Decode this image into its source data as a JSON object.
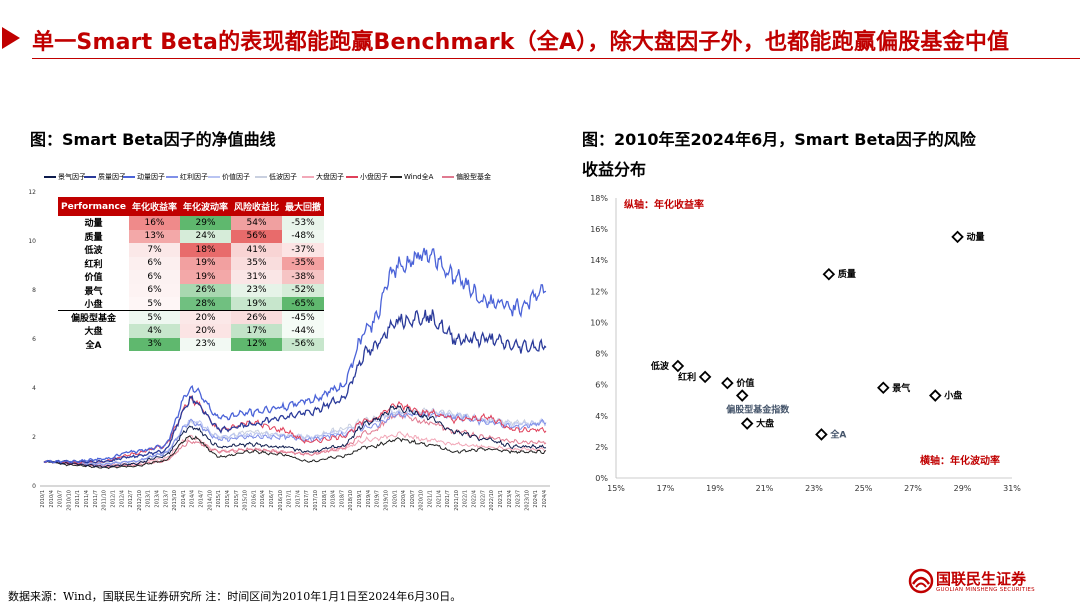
{
  "header": {
    "title": "单一Smart Beta的表现都能跑赢Benchmark（全A），除大盘因子外，也都能跑赢偏股基金中值"
  },
  "left_title": "图：Smart Beta因子的净值曲线",
  "right_title_line1": "图：2010年至2024年6月，Smart Beta因子的风险",
  "right_title_line2": "收益分布",
  "legend": [
    {
      "label": "景气因子",
      "color": "#0d1b4c"
    },
    {
      "label": "质量因子",
      "color": "#2a3a9a"
    },
    {
      "label": "动量因子",
      "color": "#4b63d8"
    },
    {
      "label": "红利因子",
      "color": "#7f8fe8"
    },
    {
      "label": "价值因子",
      "color": "#b9c4f2"
    },
    {
      "label": "低波因子",
      "color": "#c9d0e0"
    },
    {
      "label": "大盘因子",
      "color": "#f2a8b8"
    },
    {
      "label": "小盘因子",
      "color": "#e0405a"
    },
    {
      "label": "Wind全A",
      "color": "#222222"
    },
    {
      "label": "偏股型基金",
      "color": "#e07a90"
    }
  ],
  "table": {
    "headers": [
      "Performance",
      "年化收益率",
      "年化波动率",
      "风险收益比",
      "最大回撤"
    ],
    "rows": [
      {
        "name": "动量",
        "values": [
          "16%",
          "29%",
          "54%",
          "-53%"
        ],
        "colors": [
          "#ef8a8a",
          "#5fb86e",
          "#f0a0a0",
          "#e8f4ea"
        ]
      },
      {
        "name": "质量",
        "values": [
          "13%",
          "24%",
          "56%",
          "-48%"
        ],
        "colors": [
          "#f3a8a8",
          "#d6ecd9",
          "#e86b6b",
          "#eff7f0"
        ]
      },
      {
        "name": "低波",
        "values": [
          "7%",
          "18%",
          "41%",
          "-37%"
        ],
        "colors": [
          "#fbe8e8",
          "#e86b6b",
          "#f8d4d4",
          "#fce4e4"
        ]
      },
      {
        "name": "红利",
        "values": [
          "6%",
          "19%",
          "35%",
          "-35%"
        ],
        "colors": [
          "#fcefef",
          "#f2a0a0",
          "#f9dddd",
          "#f3a0a0"
        ]
      },
      {
        "name": "价值",
        "values": [
          "6%",
          "19%",
          "31%",
          "-38%"
        ],
        "colors": [
          "#fcf2f2",
          "#f3a8a8",
          "#fae6e6",
          "#f6c4c4"
        ]
      },
      {
        "name": "景气",
        "values": [
          "6%",
          "26%",
          "23%",
          "-52%"
        ],
        "colors": [
          "#fdf3f3",
          "#a8d8b0",
          "#e6f3e8",
          "#d6ecd9"
        ]
      },
      {
        "name": "小盘",
        "values": [
          "5%",
          "28%",
          "19%",
          "-65%"
        ],
        "colors": [
          "#fef6f6",
          "#70c080",
          "#c7e6cc",
          "#5fb86e"
        ]
      },
      {
        "name": "偏股型基金",
        "values": [
          "5%",
          "20%",
          "26%",
          "-45%"
        ],
        "colors": [
          "#eef7f0",
          "#fbe8e8",
          "#f9dddd",
          "#f4fbf5"
        ]
      },
      {
        "name": "大盘",
        "values": [
          "4%",
          "20%",
          "17%",
          "-44%"
        ],
        "colors": [
          "#c7e6cc",
          "#fbe4e4",
          "#c2e3c8",
          "#f4fbf5"
        ]
      },
      {
        "name": "全A",
        "values": [
          "3%",
          "23%",
          "12%",
          "-56%"
        ],
        "colors": [
          "#5fb86e",
          "#f2f9f3",
          "#5fb86e",
          "#c7e6cc"
        ]
      }
    ]
  },
  "chart_data": [
    {
      "type": "line",
      "title": "图：Smart Beta因子的净值曲线",
      "ylim": [
        0,
        12
      ],
      "yticks": [
        "0",
        "2",
        "4",
        "6",
        "8",
        "10",
        "12"
      ],
      "x_labels": [
        "2010/1",
        "2010/4",
        "2010/7",
        "2010/10",
        "2011/1",
        "2011/4",
        "2011/7",
        "2011/10",
        "2012/1",
        "2012/4",
        "2012/7",
        "2012/10",
        "2013/1",
        "2013/4",
        "2013/7",
        "2013/10",
        "2014/1",
        "2014/4",
        "2014/7",
        "2014/10",
        "2015/1",
        "2015/4",
        "2015/7",
        "2015/10",
        "2016/1",
        "2016/4",
        "2016/7",
        "2016/10",
        "2017/1",
        "2017/4",
        "2017/7",
        "2017/10",
        "2018/1",
        "2018/4",
        "2018/7",
        "2018/10",
        "2019/1",
        "2019/4",
        "2019/7",
        "2019/10",
        "2020/1",
        "2020/4",
        "2020/7",
        "2020/10",
        "2021/1",
        "2021/4",
        "2021/7",
        "2021/10",
        "2022/1",
        "2022/4",
        "2022/7",
        "2022/10",
        "2023/1",
        "2023/4",
        "2023/7",
        "2023/10",
        "2024/1",
        "2024/4"
      ],
      "series_note": "approximate yearly shape per series",
      "series": [
        {
          "name": "动量因子",
          "values": [
            1.0,
            1.0,
            1.1,
            1.4,
            1.6,
            4.0,
            2.8,
            3.0,
            3.2,
            3.5,
            4.0,
            6.5,
            9.0,
            9.5,
            8.5,
            7.5,
            7.3,
            8.0
          ]
        },
        {
          "name": "质量因子",
          "values": [
            1.0,
            1.0,
            1.0,
            1.2,
            1.4,
            3.5,
            2.3,
            2.5,
            2.8,
            3.0,
            3.5,
            5.5,
            6.8,
            6.9,
            6.0,
            6.0,
            5.7,
            5.7
          ]
        },
        {
          "name": "景气因子",
          "values": [
            1.0,
            0.9,
            0.8,
            0.9,
            1.2,
            2.4,
            1.6,
            1.7,
            1.6,
            1.4,
            1.6,
            2.6,
            3.2,
            2.8,
            2.2,
            1.9,
            1.6,
            1.6
          ]
        },
        {
          "name": "红利因子",
          "values": [
            1.0,
            0.95,
            0.9,
            1.0,
            1.3,
            2.6,
            1.9,
            2.0,
            2.0,
            1.9,
            2.1,
            2.4,
            2.9,
            2.9,
            2.8,
            2.6,
            2.4,
            2.6
          ]
        },
        {
          "name": "价值因子",
          "values": [
            1.0,
            0.95,
            0.9,
            1.0,
            1.3,
            2.7,
            2.0,
            2.1,
            2.1,
            2.0,
            2.2,
            2.6,
            3.0,
            3.0,
            2.9,
            2.7,
            2.5,
            2.6
          ]
        },
        {
          "name": "低波因子",
          "values": [
            1.0,
            0.95,
            0.95,
            1.0,
            1.3,
            2.6,
            2.0,
            2.2,
            2.1,
            2.0,
            2.3,
            2.7,
            3.0,
            3.1,
            2.9,
            2.7,
            2.6,
            2.6
          ]
        },
        {
          "name": "大盘因子",
          "values": [
            1.0,
            0.9,
            0.85,
            0.9,
            1.1,
            2.0,
            1.4,
            1.5,
            1.4,
            1.3,
            1.5,
            1.9,
            2.1,
            1.9,
            1.7,
            1.6,
            1.5,
            1.5
          ]
        },
        {
          "name": "小盘因子",
          "values": [
            1.0,
            0.95,
            1.0,
            1.3,
            1.6,
            3.5,
            2.3,
            2.6,
            2.3,
            1.8,
            2.0,
            2.7,
            3.3,
            3.0,
            2.7,
            2.8,
            2.3,
            2.3
          ]
        },
        {
          "name": "Wind全A",
          "values": [
            1.0,
            0.85,
            0.75,
            0.8,
            1.0,
            2.0,
            1.2,
            1.4,
            1.3,
            1.0,
            1.2,
            1.6,
            1.9,
            1.7,
            1.4,
            1.5,
            1.4,
            1.4
          ]
        },
        {
          "name": "偏股型基金",
          "values": [
            1.0,
            0.9,
            0.8,
            0.85,
            1.0,
            1.8,
            1.4,
            1.5,
            1.4,
            1.3,
            1.5,
            2.2,
            2.9,
            2.6,
            2.2,
            2.0,
            1.8,
            1.8
          ]
        }
      ]
    },
    {
      "type": "scatter",
      "title": "图：2010年至2024年6月，Smart Beta因子的风险收益分布",
      "xlabel": "横轴：年化波动率",
      "ylabel": "纵轴：年化收益率",
      "xlim": [
        15,
        31
      ],
      "ylim": [
        0,
        18
      ],
      "xticks": [
        "15%",
        "17%",
        "19%",
        "21%",
        "23%",
        "25%",
        "27%",
        "29%",
        "31%"
      ],
      "yticks": [
        "0%",
        "2%",
        "4%",
        "6%",
        "8%",
        "10%",
        "12%",
        "14%",
        "16%",
        "18%"
      ],
      "points": [
        {
          "label": "动量",
          "x": 28.8,
          "y": 15.5,
          "label_pos": "right",
          "label_color": "#000000"
        },
        {
          "label": "质量",
          "x": 23.6,
          "y": 13.1,
          "label_pos": "right",
          "label_color": "#000000"
        },
        {
          "label": "低波",
          "x": 17.5,
          "y": 7.2,
          "label_pos": "left",
          "label_color": "#000000"
        },
        {
          "label": "红利",
          "x": 18.6,
          "y": 6.5,
          "label_pos": "left",
          "label_color": "#000000"
        },
        {
          "label": "价值",
          "x": 19.5,
          "y": 6.1,
          "label_pos": "right",
          "label_color": "#000000"
        },
        {
          "label": "偏股型基金指数",
          "x": 20.1,
          "y": 5.3,
          "label_pos": "below",
          "label_color": "#44546a"
        },
        {
          "label": "大盘",
          "x": 20.3,
          "y": 3.5,
          "label_pos": "right",
          "label_color": "#000000"
        },
        {
          "label": "全A",
          "x": 23.3,
          "y": 2.8,
          "label_pos": "right",
          "label_color": "#44546a"
        },
        {
          "label": "景气",
          "x": 25.8,
          "y": 5.8,
          "label_pos": "right",
          "label_color": "#000000"
        },
        {
          "label": "小盘",
          "x": 27.9,
          "y": 5.3,
          "label_pos": "right",
          "label_color": "#000000"
        }
      ]
    }
  ],
  "footer": {
    "source": "数据来源：Wind，国联民生证券研究所 注：时间区间为2010年1月1日至2024年6月30日。"
  },
  "logo": {
    "cn": "国联民生证券",
    "en": "GUOLIAN MINSHENG SECURITIES"
  },
  "colors": {
    "accent": "#c00000",
    "axis_label": "#c00000"
  }
}
